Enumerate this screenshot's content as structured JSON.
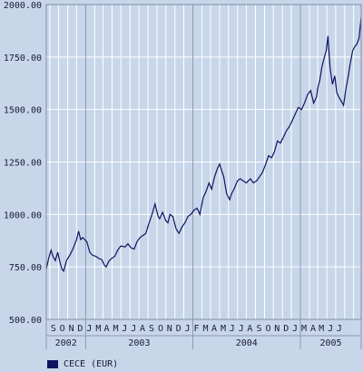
{
  "chart_data": {
    "type": "line",
    "legend_position": "bottom-left",
    "grid": true,
    "ylim": [
      500,
      2000
    ],
    "yticks": [
      "500.00",
      "750.00",
      "1000.00",
      "1250.00",
      "1500.00",
      "1750.00",
      "2000.00"
    ],
    "xlim": [
      "2002-08-20",
      "2005-07-27"
    ],
    "month_labels": [
      "S",
      "O",
      "N",
      "D",
      "J",
      "M",
      "A",
      "M",
      "J",
      "J",
      "A",
      "S",
      "O",
      "N",
      "D",
      "J",
      "F",
      "M",
      "A",
      "M",
      "J",
      "J",
      "A",
      "S",
      "O",
      "N",
      "D",
      "J",
      "M",
      "A",
      "M",
      "J",
      "J"
    ],
    "year_labels": [
      "2002",
      "2003",
      "2004",
      "2005"
    ],
    "series": [
      {
        "name": "CECE (EUR)",
        "color": "#0e1460",
        "x": [
          "2002-08-20",
          "2002-08-28",
          "2002-09-05",
          "2002-09-12",
          "2002-09-20",
          "2002-09-28",
          "2002-10-05",
          "2002-10-12",
          "2002-10-18",
          "2002-10-28",
          "2002-11-10",
          "2002-11-20",
          "2002-12-01",
          "2002-12-08",
          "2002-12-15",
          "2002-12-22",
          "2003-01-05",
          "2003-01-15",
          "2003-01-25",
          "2003-02-05",
          "2003-02-15",
          "2003-02-25",
          "2003-03-05",
          "2003-03-12",
          "2003-03-20",
          "2003-03-30",
          "2003-04-10",
          "2003-04-20",
          "2003-05-01",
          "2003-05-15",
          "2003-05-25",
          "2003-06-05",
          "2003-06-15",
          "2003-06-25",
          "2003-07-05",
          "2003-07-15",
          "2003-07-25",
          "2003-08-05",
          "2003-08-15",
          "2003-08-25",
          "2003-09-05",
          "2003-09-10",
          "2003-09-20",
          "2003-10-01",
          "2003-10-08",
          "2003-10-15",
          "2003-10-25",
          "2003-11-05",
          "2003-11-15",
          "2003-11-25",
          "2003-12-05",
          "2003-12-15",
          "2003-12-25",
          "2004-01-05",
          "2004-01-15",
          "2004-01-25",
          "2004-02-05",
          "2004-02-15",
          "2004-02-25",
          "2004-03-05",
          "2004-03-15",
          "2004-03-25",
          "2004-04-01",
          "2004-04-08",
          "2004-04-15",
          "2004-04-25",
          "2004-05-05",
          "2004-05-12",
          "2004-05-20",
          "2004-06-01",
          "2004-06-10",
          "2004-06-20",
          "2004-07-01",
          "2004-07-15",
          "2004-07-25",
          "2004-08-05",
          "2004-08-15",
          "2004-08-25",
          "2004-09-05",
          "2004-09-15",
          "2004-09-25",
          "2004-10-05",
          "2004-10-15",
          "2004-10-25",
          "2004-11-05",
          "2004-11-15",
          "2004-11-25",
          "2004-12-05",
          "2004-12-15",
          "2004-12-25",
          "2005-01-05",
          "2005-01-15",
          "2005-01-25",
          "2005-02-05",
          "2005-02-15",
          "2005-02-25",
          "2005-03-01",
          "2005-03-08",
          "2005-03-15",
          "2005-03-22",
          "2005-03-30",
          "2005-04-05",
          "2005-04-12",
          "2005-04-20",
          "2005-04-28",
          "2005-05-05",
          "2005-05-12",
          "2005-05-20",
          "2005-05-28",
          "2005-06-05",
          "2005-06-12",
          "2005-06-20",
          "2005-06-28",
          "2005-07-05",
          "2005-07-12",
          "2005-07-20",
          "2005-07-27"
        ],
        "y": [
          740,
          790,
          830,
          800,
          780,
          820,
          775,
          740,
          730,
          780,
          810,
          840,
          880,
          920,
          880,
          890,
          870,
          820,
          805,
          800,
          790,
          785,
          760,
          750,
          775,
          790,
          800,
          830,
          850,
          845,
          860,
          840,
          835,
          870,
          890,
          900,
          910,
          960,
          1000,
          1050,
          990,
          980,
          1010,
          970,
          960,
          1000,
          990,
          930,
          910,
          940,
          960,
          990,
          1000,
          1020,
          1030,
          1000,
          1080,
          1110,
          1150,
          1120,
          1180,
          1220,
          1240,
          1210,
          1180,
          1100,
          1070,
          1100,
          1120,
          1160,
          1170,
          1160,
          1150,
          1170,
          1150,
          1160,
          1180,
          1200,
          1240,
          1280,
          1270,
          1300,
          1350,
          1340,
          1370,
          1400,
          1420,
          1450,
          1480,
          1510,
          1500,
          1530,
          1570,
          1590,
          1530,
          1560,
          1600,
          1640,
          1700,
          1740,
          1780,
          1850,
          1700,
          1620,
          1660,
          1580,
          1560,
          1540,
          1520,
          1600,
          1650,
          1720,
          1780,
          1800,
          1810,
          1840,
          1940
        ]
      }
    ]
  }
}
